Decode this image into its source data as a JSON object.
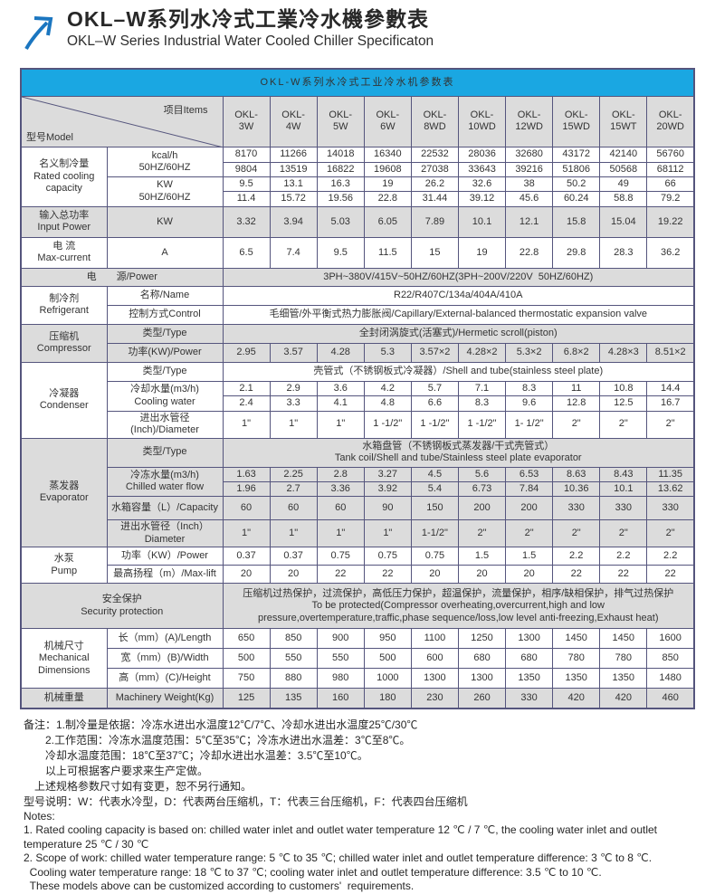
{
  "header": {
    "logo_icon": "arrow-up-right-icon",
    "title_zh": "OKL–W系列水冷式工業冷水機參數表",
    "title_en": "OKL–W Series Industrial Water Cooled Chiller Specificaton"
  },
  "table": {
    "title": "OKL-W系列水冷式工业冷水机参数表",
    "corner": {
      "model": "型号Model",
      "items": "项目Items"
    },
    "models": [
      "OKL-\n3W",
      "OKL-\n4W",
      "OKL-\n5W",
      "OKL-\n6W",
      "OKL-\n8WD",
      "OKL-\n10WD",
      "OKL-\n12WD",
      "OKL-\n15WD",
      "OKL-\n15WT",
      "OKL-\n20WD"
    ],
    "cooling": {
      "group": "名义制冷量\nRated cooling\ncapacity",
      "kcal_label": "kcal/h\n50HZ/60HZ",
      "kcal_50hz": [
        "8170",
        "11266",
        "14018",
        "16340",
        "22532",
        "28036",
        "32680",
        "43172",
        "42140",
        "56760"
      ],
      "kcal_60hz": [
        "9804",
        "13519",
        "16822",
        "19608",
        "27038",
        "33643",
        "39216",
        "51806",
        "50568",
        "68112"
      ],
      "kw_label": "KW\n50HZ/60HZ",
      "kw_50hz": [
        "9.5",
        "13.1",
        "16.3",
        "19",
        "26.2",
        "32.6",
        "38",
        "50.2",
        "49",
        "66"
      ],
      "kw_60hz": [
        "11.4",
        "15.72",
        "19.56",
        "22.8",
        "31.44",
        "39.12",
        "45.6",
        "60.24",
        "58.8",
        "79.2"
      ]
    },
    "input_power": {
      "group": "输入总功率\nInput Power",
      "label": "KW",
      "values": [
        "3.32",
        "3.94",
        "5.03",
        "6.05",
        "7.89",
        "10.1",
        "12.1",
        "15.8",
        "15.04",
        "19.22"
      ]
    },
    "current": {
      "group": "电 流\nMax-current",
      "label": "A",
      "values": [
        "6.5",
        "7.4",
        "9.5",
        "11.5",
        "15",
        "19",
        "22.8",
        "29.8",
        "28.3",
        "36.2"
      ]
    },
    "power_supply": {
      "label": "电　　源/Power",
      "value": "3PH~380V/415V~50HZ/60HZ(3PH~200V/220V  50HZ/60HZ)"
    },
    "refrigerant": {
      "group": "制冷剂\nRefrigerant",
      "name_label": "名称/Name",
      "name": "R22/R407C/134a/404A/410A",
      "control_label": "控制方式Control",
      "control": "毛细管/外平衡式热力膨胀阀/Capillary/External-balanced thermostatic expansion valve"
    },
    "compressor": {
      "group": "压缩机\nCompressor",
      "type_label": "类型/Type",
      "type": "全封闭涡旋式(活塞式)/Hermetic scroll(piston)",
      "power_label": "功率(KW)/Power",
      "power": [
        "2.95",
        "3.57",
        "4.28",
        "5.3",
        "3.57×2",
        "4.28×2",
        "5.3×2",
        "6.8×2",
        "4.28×3",
        "8.51×2"
      ]
    },
    "condenser": {
      "group": "冷凝器\nCondenser",
      "type_label": "类型/Type",
      "type": "壳管式（不锈钢板式冷凝器）/Shell and tube(stainless steel plate)",
      "water_label": "冷却水量(m3/h)\nCooling water",
      "water_50hz": [
        "2.1",
        "2.9",
        "3.6",
        "4.2",
        "5.7",
        "7.1",
        "8.3",
        "11",
        "10.8",
        "14.4"
      ],
      "water_60hz": [
        "2.4",
        "3.3",
        "4.1",
        "4.8",
        "6.6",
        "8.3",
        "9.6",
        "12.8",
        "12.5",
        "16.7"
      ],
      "diameter_label": "进出水管径\n(Inch)/Diameter",
      "diameter": [
        "1\"",
        "1\"",
        "1\"",
        "1 -1/2\"",
        "1 -1/2\"",
        "1 -1/2\"",
        "1- 1/2\"",
        "2\"",
        "2\"",
        "2\""
      ]
    },
    "evaporator": {
      "group": "蒸发器\nEvaporator",
      "type_label": "类型/Type",
      "type": "水箱盘管（不锈钢板式蒸发器/干式壳管式）\nTank coil/Shell and tube/Stainless steel plate evaporator",
      "flow_label": "冷冻水量(m3/h)\nChilled water flow",
      "flow_50hz": [
        "1.63",
        "2.25",
        "2.8",
        "3.27",
        "4.5",
        "5.6",
        "6.53",
        "8.63",
        "8.43",
        "11.35"
      ],
      "flow_60hz": [
        "1.96",
        "2.7",
        "3.36",
        "3.92",
        "5.4",
        "6.73",
        "7.84",
        "10.36",
        "10.1",
        "13.62"
      ],
      "capacity_label": "水箱容量（L）/Capacity",
      "capacity": [
        "60",
        "60",
        "60",
        "90",
        "150",
        "200",
        "200",
        "330",
        "330",
        "330"
      ],
      "diameter_label": "进出水管径（Inch）\nDiameter",
      "diameter": [
        "1\"",
        "1\"",
        "1\"",
        "1\"",
        "1-1/2\"",
        "2\"",
        "2\"",
        "2\"",
        "2\"",
        "2\""
      ]
    },
    "pump": {
      "group": "水泵\nPump",
      "power_label": "功率（KW）/Power",
      "power": [
        "0.37",
        "0.37",
        "0.75",
        "0.75",
        "0.75",
        "1.5",
        "1.5",
        "2.2",
        "2.2",
        "2.2"
      ],
      "lift_label": "最高扬程（m）/Max-lift",
      "lift": [
        "20",
        "20",
        "22",
        "22",
        "20",
        "20",
        "20",
        "22",
        "22",
        "22"
      ]
    },
    "security": {
      "label": "安全保护\nSecurity protection",
      "value": "压缩机过热保护，过流保护，高低压力保护，超温保护，流量保护，相序/缺相保护，排气过热保护\nTo be protected(Compressor overheating,overcurrent,high and low\npressure,overtemperature,traffic,phase sequence/loss,low level anti-freezing,Exhaust heat)"
    },
    "dimensions": {
      "group": "机械尺寸\nMechanical\nDimensions",
      "length_label": "长（mm）(A)/Length",
      "length": [
        "650",
        "850",
        "900",
        "950",
        "1100",
        "1250",
        "1300",
        "1450",
        "1450",
        "1600"
      ],
      "width_label": "宽（mm）(B)/Width",
      "width": [
        "500",
        "550",
        "550",
        "500",
        "600",
        "680",
        "680",
        "780",
        "780",
        "850"
      ],
      "height_label": "高（mm）(C)/Height",
      "height": [
        "750",
        "880",
        "980",
        "1000",
        "1300",
        "1300",
        "1350",
        "1350",
        "1350",
        "1480"
      ]
    },
    "weight": {
      "group": "机械重量",
      "label": "Machinery Weight(Kg)",
      "values": [
        "125",
        "135",
        "160",
        "180",
        "230",
        "260",
        "330",
        "420",
        "420",
        "460"
      ]
    }
  },
  "notes": {
    "zh": [
      "备注：1.制冷量是依据：冷冻水进出水温度12℃/7℃、冷却水进出水温度25℃/30℃",
      "　　2.工作范围：冷冻水温度范围：5℃至35℃；冷冻水进出水温差：3℃至8℃。",
      "　　冷却水温度范围：18℃至37℃；冷却水进出水温差：3.5℃至10℃。",
      "　　以上可根据客户要求来生产定做。",
      "　上述规格参数尺寸如有变更，恕不另行通知。",
      "型号说明：W：代表水冷型，D：代表两台压缩机，T：代表三台压缩机，F：代表四台压缩机"
    ],
    "en": [
      "Notes:",
      "1. Rated cooling capacity is based on: chilled water inlet and outlet water temperature 12 ℃ / 7 ℃, the cooling water inlet and outlet",
      "temperature 25 ℃ / 30 ℃",
      "2. Scope of work: chilled water temperature range: 5 ℃ to 35 ℃; chilled water inlet and outlet temperature difference: 3 ℃ to 8 ℃.",
      "  Cooling water temperature range: 18 ℃ to 37 ℃; cooling water inlet and outlet temperature difference: 3.5 ℃ to 10 ℃.",
      "  These models above can be customized according to customers'  requirements."
    ]
  },
  "colors": {
    "accent_blue": "#1aa7e2",
    "logo_blue": "#1b76c0",
    "row_gray": "#dcdcdc",
    "border": "#55557d"
  }
}
